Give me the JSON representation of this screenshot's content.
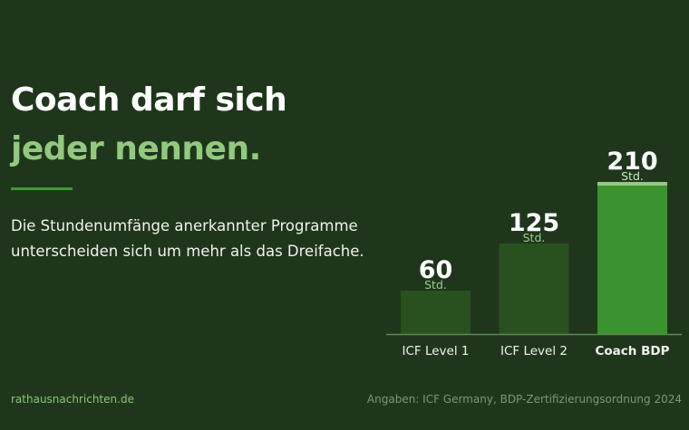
{
  "headline": {
    "line1": "Coach darf sich",
    "line2": "jeder nennen."
  },
  "lede": {
    "line1": "Die Stundenumfänge anerkannter Programme",
    "line2": "unterscheiden sich um mehr als das Dreifache."
  },
  "footer": {
    "source_site": "rathausnachrichten.de",
    "source_note": "Angaben: ICF Germany, BDP-Zertifizierungsordnung 2024"
  },
  "colors": {
    "background": "#1f361c",
    "bar_default": "#29501f",
    "bar_highlight": "#3a932f",
    "bar_highlight_cap": "#93c97f",
    "accent_text": "#93c97f"
  },
  "chart_data": {
    "type": "bar",
    "categories": [
      "ICF Level 1",
      "ICF Level 2",
      "Coach BDP"
    ],
    "values": [
      60,
      125,
      210
    ],
    "unit_label": "Std.",
    "highlight": "Coach BDP",
    "ylim": [
      0,
      210
    ],
    "grid": false,
    "legend": false
  }
}
